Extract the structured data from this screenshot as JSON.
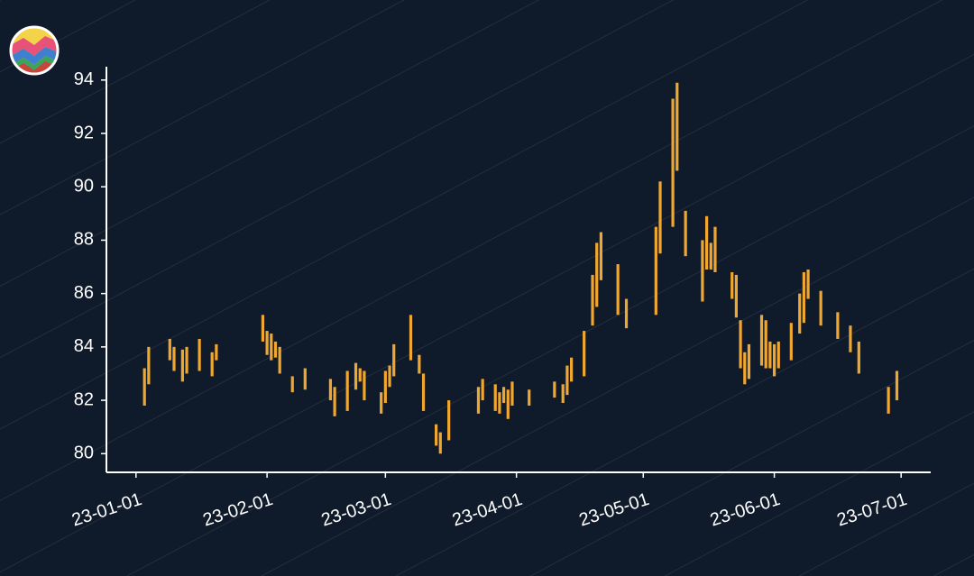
{
  "chart_data": {
    "type": "range",
    "x": [
      "2023-01-03",
      "2023-01-04",
      "2023-01-09",
      "2023-01-10",
      "2023-01-12",
      "2023-01-13",
      "2023-01-16",
      "2023-01-19",
      "2023-01-20",
      "2023-01-31",
      "2023-02-01",
      "2023-02-02",
      "2023-02-03",
      "2023-02-04",
      "2023-02-07",
      "2023-02-10",
      "2023-02-16",
      "2023-02-17",
      "2023-02-20",
      "2023-02-22",
      "2023-02-23",
      "2023-02-24",
      "2023-02-28",
      "2023-03-01",
      "2023-03-02",
      "2023-03-03",
      "2023-03-07",
      "2023-03-09",
      "2023-03-10",
      "2023-03-13",
      "2023-03-14",
      "2023-03-16",
      "2023-03-23",
      "2023-03-24",
      "2023-03-27",
      "2023-03-28",
      "2023-03-29",
      "2023-03-30",
      "2023-03-31",
      "2023-04-04",
      "2023-04-10",
      "2023-04-12",
      "2023-04-13",
      "2023-04-14",
      "2023-04-17",
      "2023-04-19",
      "2023-04-20",
      "2023-04-21",
      "2023-04-25",
      "2023-04-27",
      "2023-05-04",
      "2023-05-05",
      "2023-05-08",
      "2023-05-09",
      "2023-05-11",
      "2023-05-15",
      "2023-05-16",
      "2023-05-17",
      "2023-05-18",
      "2023-05-22",
      "2023-05-23",
      "2023-05-24",
      "2023-05-25",
      "2023-05-26",
      "2023-05-29",
      "2023-05-30",
      "2023-05-31",
      "2023-06-01",
      "2023-06-02",
      "2023-06-05",
      "2023-06-07",
      "2023-06-08",
      "2023-06-09",
      "2023-06-12",
      "2023-06-16",
      "2023-06-19",
      "2023-06-21",
      "2023-06-28",
      "2023-06-30"
    ],
    "low": [
      81.8,
      82.6,
      83.5,
      83.1,
      82.7,
      83.0,
      83.1,
      82.9,
      83.5,
      84.2,
      83.7,
      83.5,
      83.6,
      83.0,
      82.3,
      82.4,
      82.0,
      81.4,
      81.6,
      82.4,
      82.7,
      82.0,
      81.5,
      81.9,
      82.5,
      82.9,
      83.5,
      83.0,
      81.6,
      80.3,
      80.0,
      80.5,
      81.5,
      82.0,
      81.6,
      81.5,
      81.9,
      81.3,
      81.8,
      81.8,
      82.1,
      81.9,
      82.2,
      82.7,
      82.9,
      84.8,
      85.5,
      86.5,
      85.2,
      84.7,
      85.2,
      87.5,
      88.5,
      90.6,
      87.4,
      85.7,
      86.9,
      86.9,
      86.8,
      85.8,
      85.1,
      83.2,
      82.6,
      82.8,
      83.3,
      83.2,
      83.2,
      82.9,
      83.2,
      83.5,
      84.5,
      84.9,
      85.8,
      84.8,
      84.3,
      83.8,
      83.0,
      81.5,
      82.0
    ],
    "high": [
      83.2,
      84.0,
      84.3,
      84.0,
      83.9,
      84.0,
      84.3,
      83.8,
      84.1,
      85.2,
      84.6,
      84.5,
      84.2,
      84.0,
      82.9,
      83.2,
      82.8,
      82.5,
      83.1,
      83.4,
      83.2,
      83.1,
      82.3,
      83.1,
      83.3,
      84.1,
      85.2,
      83.7,
      83.0,
      81.1,
      80.8,
      82.0,
      82.5,
      82.8,
      82.6,
      82.3,
      82.5,
      82.4,
      82.7,
      82.4,
      82.7,
      82.6,
      83.3,
      83.6,
      84.6,
      86.7,
      87.9,
      88.3,
      87.1,
      85.8,
      88.5,
      90.2,
      93.3,
      93.9,
      89.1,
      88.0,
      88.9,
      87.9,
      88.5,
      86.8,
      86.7,
      85.0,
      83.8,
      84.1,
      85.2,
      85.0,
      84.2,
      84.1,
      84.2,
      84.9,
      86.0,
      86.8,
      86.9,
      86.1,
      85.3,
      84.8,
      84.2,
      82.5,
      83.1
    ],
    "color": "#f0a72f",
    "xlim": [
      "2022-12-25",
      "2023-07-08"
    ],
    "xticks": [
      {
        "value": "2023-01-01",
        "label": "23-01-01"
      },
      {
        "value": "2023-02-01",
        "label": "23-02-01"
      },
      {
        "value": "2023-03-01",
        "label": "23-03-01"
      },
      {
        "value": "2023-04-01",
        "label": "23-04-01"
      },
      {
        "value": "2023-05-01",
        "label": "23-05-01"
      },
      {
        "value": "2023-06-01",
        "label": "23-06-01"
      },
      {
        "value": "2023-07-01",
        "label": "23-07-01"
      }
    ],
    "ylim": [
      79.3,
      94.5
    ],
    "yticks": [
      80,
      82,
      84,
      86,
      88,
      90,
      92,
      94
    ],
    "grid": false
  }
}
